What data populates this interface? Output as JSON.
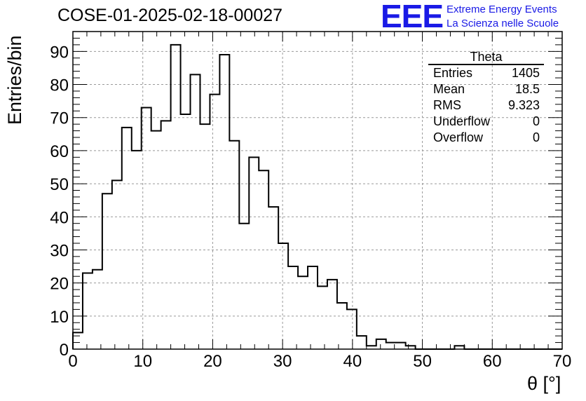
{
  "run_title": "COSE-01-2025-02-18-00027",
  "logo": {
    "text": "EEE",
    "line1": "Extreme Energy Events",
    "line2": "La Scienza nelle Scuole",
    "color": "#1a1ae6"
  },
  "stats": {
    "name": "Theta",
    "rows": [
      {
        "label": "Entries",
        "value": "1405"
      },
      {
        "label": "Mean",
        "value": "18.5"
      },
      {
        "label": "RMS",
        "value": "9.323"
      },
      {
        "label": "Underflow",
        "value": "0"
      },
      {
        "label": "Overflow",
        "value": "0"
      }
    ]
  },
  "chart_data": {
    "type": "bar",
    "histogram": "step",
    "bin_width": 1.4,
    "bin_edges_start": 0,
    "x_ticks": [
      "0",
      "10",
      "20",
      "30",
      "40",
      "50",
      "60",
      "70"
    ],
    "y_ticks": [
      "0",
      "10",
      "20",
      "30",
      "40",
      "50",
      "60",
      "70",
      "80",
      "90"
    ],
    "values": [
      5,
      23,
      24,
      47,
      51,
      67,
      60,
      73,
      66,
      69,
      92,
      71,
      83,
      68,
      77,
      89,
      63,
      38,
      58,
      54,
      43,
      32,
      25,
      22,
      25,
      19,
      21,
      14,
      12,
      4,
      1,
      3,
      2,
      2,
      1,
      0,
      0,
      0,
      0,
      1,
      0,
      0,
      0,
      0,
      0,
      0,
      0,
      0,
      0,
      0
    ],
    "xlabel": "θ [°]",
    "ylabel": "Entries/bin",
    "xlim": [
      0,
      70
    ],
    "ylim": [
      0,
      96
    ],
    "grid": true,
    "line_color": "#000000",
    "grid_color": "#999999"
  }
}
